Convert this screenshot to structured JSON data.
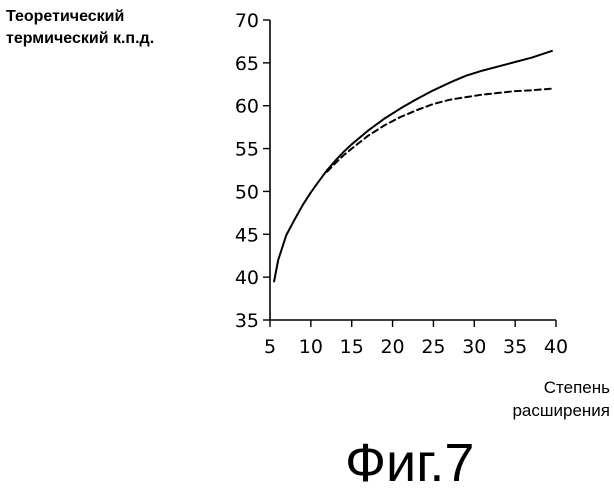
{
  "chart_data": {
    "type": "line",
    "ylabel": "Теоретический термический к.п.д.",
    "ylabel_lines": [
      "Теоретический",
      "термический к.п.д."
    ],
    "xlabel": "Степень расширения",
    "xlabel_lines": [
      "Степень",
      "расширения"
    ],
    "xlim": [
      5,
      40
    ],
    "ylim": [
      35,
      70
    ],
    "xticks": [
      5,
      10,
      15,
      20,
      25,
      30,
      35,
      40
    ],
    "yticks": [
      35,
      40,
      45,
      50,
      55,
      60,
      65,
      70
    ],
    "grid": false,
    "legend": null,
    "series": [
      {
        "style": "solid",
        "x": [
          5.5,
          6,
          7,
          8,
          9,
          10,
          11,
          12,
          13,
          14,
          15,
          17,
          19,
          21,
          23,
          25,
          27,
          29,
          31,
          33,
          35,
          37,
          39.5
        ],
        "y": [
          39.5,
          42.0,
          44.9,
          46.7,
          48.4,
          49.9,
          51.2,
          52.5,
          53.6,
          54.6,
          55.5,
          57.1,
          58.5,
          59.7,
          60.8,
          61.8,
          62.7,
          63.5,
          64.1,
          64.6,
          65.1,
          65.6,
          66.4
        ]
      },
      {
        "style": "dashed",
        "x": [
          12,
          13,
          14,
          15,
          17,
          19,
          21,
          23,
          25,
          27,
          29,
          31,
          33,
          35,
          37,
          39.5
        ],
        "y": [
          52.3,
          53.3,
          54.2,
          55.0,
          56.5,
          57.7,
          58.7,
          59.5,
          60.2,
          60.7,
          61.0,
          61.3,
          61.5,
          61.7,
          61.8,
          62.0
        ]
      }
    ]
  },
  "figure": {
    "caption": "Фиг.7"
  }
}
